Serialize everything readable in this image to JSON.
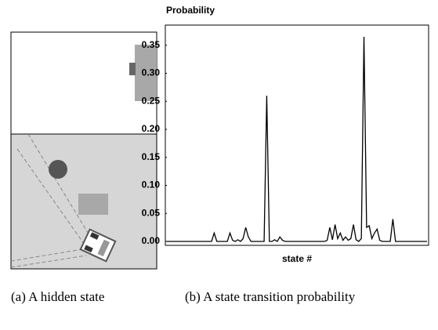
{
  "chart_data": {
    "type": "line",
    "ylabel": "Probability",
    "xlabel": "state #",
    "values": [
      0,
      0,
      0,
      0,
      0,
      0,
      0,
      0,
      0,
      0,
      0,
      0,
      0,
      0,
      0,
      0,
      0,
      0,
      0.015,
      0,
      0,
      0,
      0,
      0,
      0.015,
      0.002,
      0,
      0.003,
      0,
      0.005,
      0.025,
      0.008,
      0,
      0,
      0,
      0,
      0,
      0,
      0.26,
      0,
      0,
      0.003,
      0,
      0.008,
      0.002,
      0,
      0,
      0,
      0,
      0,
      0,
      0,
      0,
      0,
      0,
      0,
      0,
      0,
      0,
      0,
      0,
      0.002,
      0.025,
      0.003,
      0.03,
      0.005,
      0.015,
      0.002,
      0.008,
      0.002,
      0.005,
      0.03,
      0.003,
      0,
      0.005,
      0.365,
      0.025,
      0.028,
      0.005,
      0.015,
      0.022,
      0.002,
      0,
      0,
      0,
      0,
      0.04,
      0,
      0,
      0,
      0,
      0,
      0,
      0,
      0,
      0,
      0,
      0,
      0,
      0
    ],
    "color": "#000000",
    "ylim": [
      -0.007,
      0.386
    ],
    "yticks": [
      {
        "value": 0,
        "label": "0.00"
      },
      {
        "value": 0.05,
        "label": "0.05"
      },
      {
        "value": 0.1,
        "label": "0.10"
      },
      {
        "value": 0.15,
        "label": "0.15"
      },
      {
        "value": 0.2,
        "label": "0.20"
      },
      {
        "value": 0.25,
        "label": "0.25"
      },
      {
        "value": 0.3,
        "label": "0.30"
      },
      {
        "value": 0.35,
        "label": "0.35"
      }
    ]
  },
  "captions": [
    "(a) A hidden state",
    "(b) A state transition probability"
  ]
}
